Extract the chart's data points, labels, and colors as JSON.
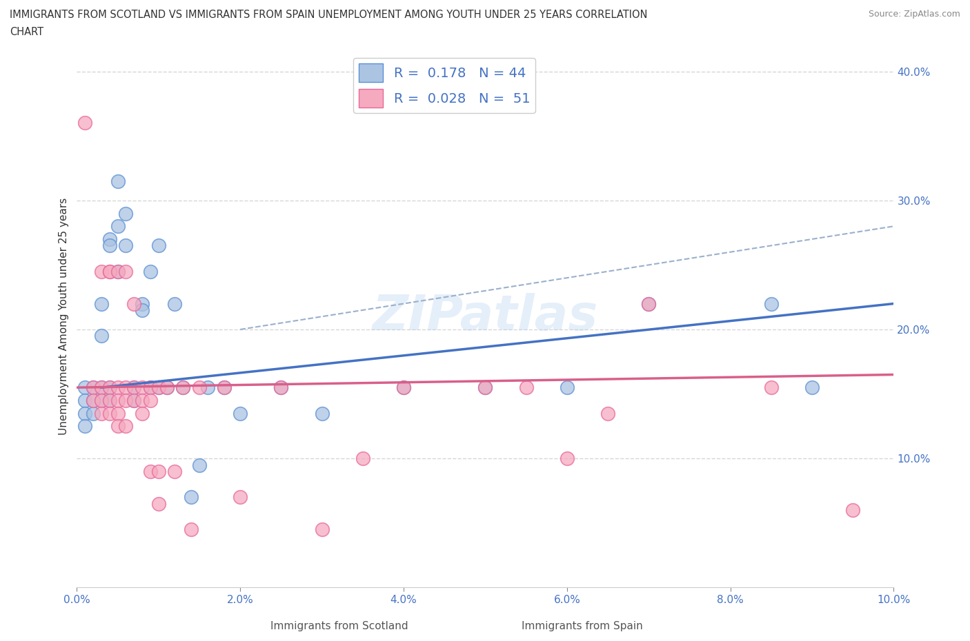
{
  "title_line1": "IMMIGRANTS FROM SCOTLAND VS IMMIGRANTS FROM SPAIN UNEMPLOYMENT AMONG YOUTH UNDER 25 YEARS CORRELATION",
  "title_line2": "CHART",
  "source": "Source: ZipAtlas.com",
  "xlabel_scotland": "Immigrants from Scotland",
  "xlabel_spain": "Immigrants from Spain",
  "axis_ylabel": "Unemployment Among Youth under 25 years",
  "watermark": "ZIPatlas",
  "xlim": [
    0.0,
    0.1
  ],
  "ylim": [
    0.0,
    0.42
  ],
  "xticks": [
    0.0,
    0.02,
    0.04,
    0.06,
    0.08,
    0.1
  ],
  "yticks": [
    0.1,
    0.2,
    0.3,
    0.4
  ],
  "xtick_labels": [
    "0.0%",
    "2.0%",
    "4.0%",
    "6.0%",
    "8.0%",
    "10.0%"
  ],
  "ytick_labels_right": [
    "10.0%",
    "20.0%",
    "30.0%",
    "40.0%"
  ],
  "scotland_color": "#aac4e2",
  "spain_color": "#f5aabf",
  "scotland_edge_color": "#5b8fd4",
  "spain_edge_color": "#e8689a",
  "scotland_line_color": "#4472c4",
  "spain_line_color": "#d95f8a",
  "dash_line_color": "#9ab0cc",
  "R_scotland": 0.178,
  "N_scotland": 44,
  "R_spain": 0.028,
  "N_spain": 51,
  "scotland_points": [
    [
      0.001,
      0.155
    ],
    [
      0.001,
      0.145
    ],
    [
      0.001,
      0.135
    ],
    [
      0.001,
      0.125
    ],
    [
      0.002,
      0.155
    ],
    [
      0.002,
      0.145
    ],
    [
      0.002,
      0.135
    ],
    [
      0.003,
      0.22
    ],
    [
      0.003,
      0.195
    ],
    [
      0.003,
      0.155
    ],
    [
      0.003,
      0.145
    ],
    [
      0.004,
      0.27
    ],
    [
      0.004,
      0.265
    ],
    [
      0.004,
      0.155
    ],
    [
      0.004,
      0.145
    ],
    [
      0.005,
      0.315
    ],
    [
      0.005,
      0.28
    ],
    [
      0.005,
      0.245
    ],
    [
      0.006,
      0.29
    ],
    [
      0.006,
      0.265
    ],
    [
      0.007,
      0.155
    ],
    [
      0.007,
      0.145
    ],
    [
      0.008,
      0.22
    ],
    [
      0.008,
      0.215
    ],
    [
      0.009,
      0.245
    ],
    [
      0.009,
      0.155
    ],
    [
      0.01,
      0.265
    ],
    [
      0.01,
      0.155
    ],
    [
      0.011,
      0.155
    ],
    [
      0.012,
      0.22
    ],
    [
      0.013,
      0.155
    ],
    [
      0.014,
      0.07
    ],
    [
      0.015,
      0.095
    ],
    [
      0.016,
      0.155
    ],
    [
      0.018,
      0.155
    ],
    [
      0.02,
      0.135
    ],
    [
      0.025,
      0.155
    ],
    [
      0.03,
      0.135
    ],
    [
      0.04,
      0.155
    ],
    [
      0.05,
      0.155
    ],
    [
      0.06,
      0.155
    ],
    [
      0.07,
      0.22
    ],
    [
      0.085,
      0.22
    ],
    [
      0.09,
      0.155
    ]
  ],
  "spain_points": [
    [
      0.001,
      0.36
    ],
    [
      0.002,
      0.155
    ],
    [
      0.002,
      0.145
    ],
    [
      0.003,
      0.245
    ],
    [
      0.003,
      0.155
    ],
    [
      0.003,
      0.145
    ],
    [
      0.003,
      0.135
    ],
    [
      0.004,
      0.245
    ],
    [
      0.004,
      0.245
    ],
    [
      0.004,
      0.155
    ],
    [
      0.004,
      0.145
    ],
    [
      0.004,
      0.135
    ],
    [
      0.005,
      0.245
    ],
    [
      0.005,
      0.155
    ],
    [
      0.005,
      0.145
    ],
    [
      0.005,
      0.135
    ],
    [
      0.005,
      0.125
    ],
    [
      0.006,
      0.245
    ],
    [
      0.006,
      0.155
    ],
    [
      0.006,
      0.145
    ],
    [
      0.006,
      0.125
    ],
    [
      0.007,
      0.22
    ],
    [
      0.007,
      0.155
    ],
    [
      0.007,
      0.145
    ],
    [
      0.008,
      0.155
    ],
    [
      0.008,
      0.145
    ],
    [
      0.008,
      0.135
    ],
    [
      0.009,
      0.155
    ],
    [
      0.009,
      0.145
    ],
    [
      0.009,
      0.09
    ],
    [
      0.01,
      0.155
    ],
    [
      0.01,
      0.09
    ],
    [
      0.01,
      0.065
    ],
    [
      0.011,
      0.155
    ],
    [
      0.012,
      0.09
    ],
    [
      0.013,
      0.155
    ],
    [
      0.014,
      0.045
    ],
    [
      0.015,
      0.155
    ],
    [
      0.018,
      0.155
    ],
    [
      0.02,
      0.07
    ],
    [
      0.025,
      0.155
    ],
    [
      0.03,
      0.045
    ],
    [
      0.035,
      0.1
    ],
    [
      0.04,
      0.155
    ],
    [
      0.05,
      0.155
    ],
    [
      0.055,
      0.155
    ],
    [
      0.06,
      0.1
    ],
    [
      0.065,
      0.135
    ],
    [
      0.07,
      0.22
    ],
    [
      0.085,
      0.155
    ],
    [
      0.095,
      0.06
    ]
  ],
  "background_color": "#ffffff",
  "grid_color": "#cccccc",
  "title_color": "#333333",
  "source_color": "#888888"
}
